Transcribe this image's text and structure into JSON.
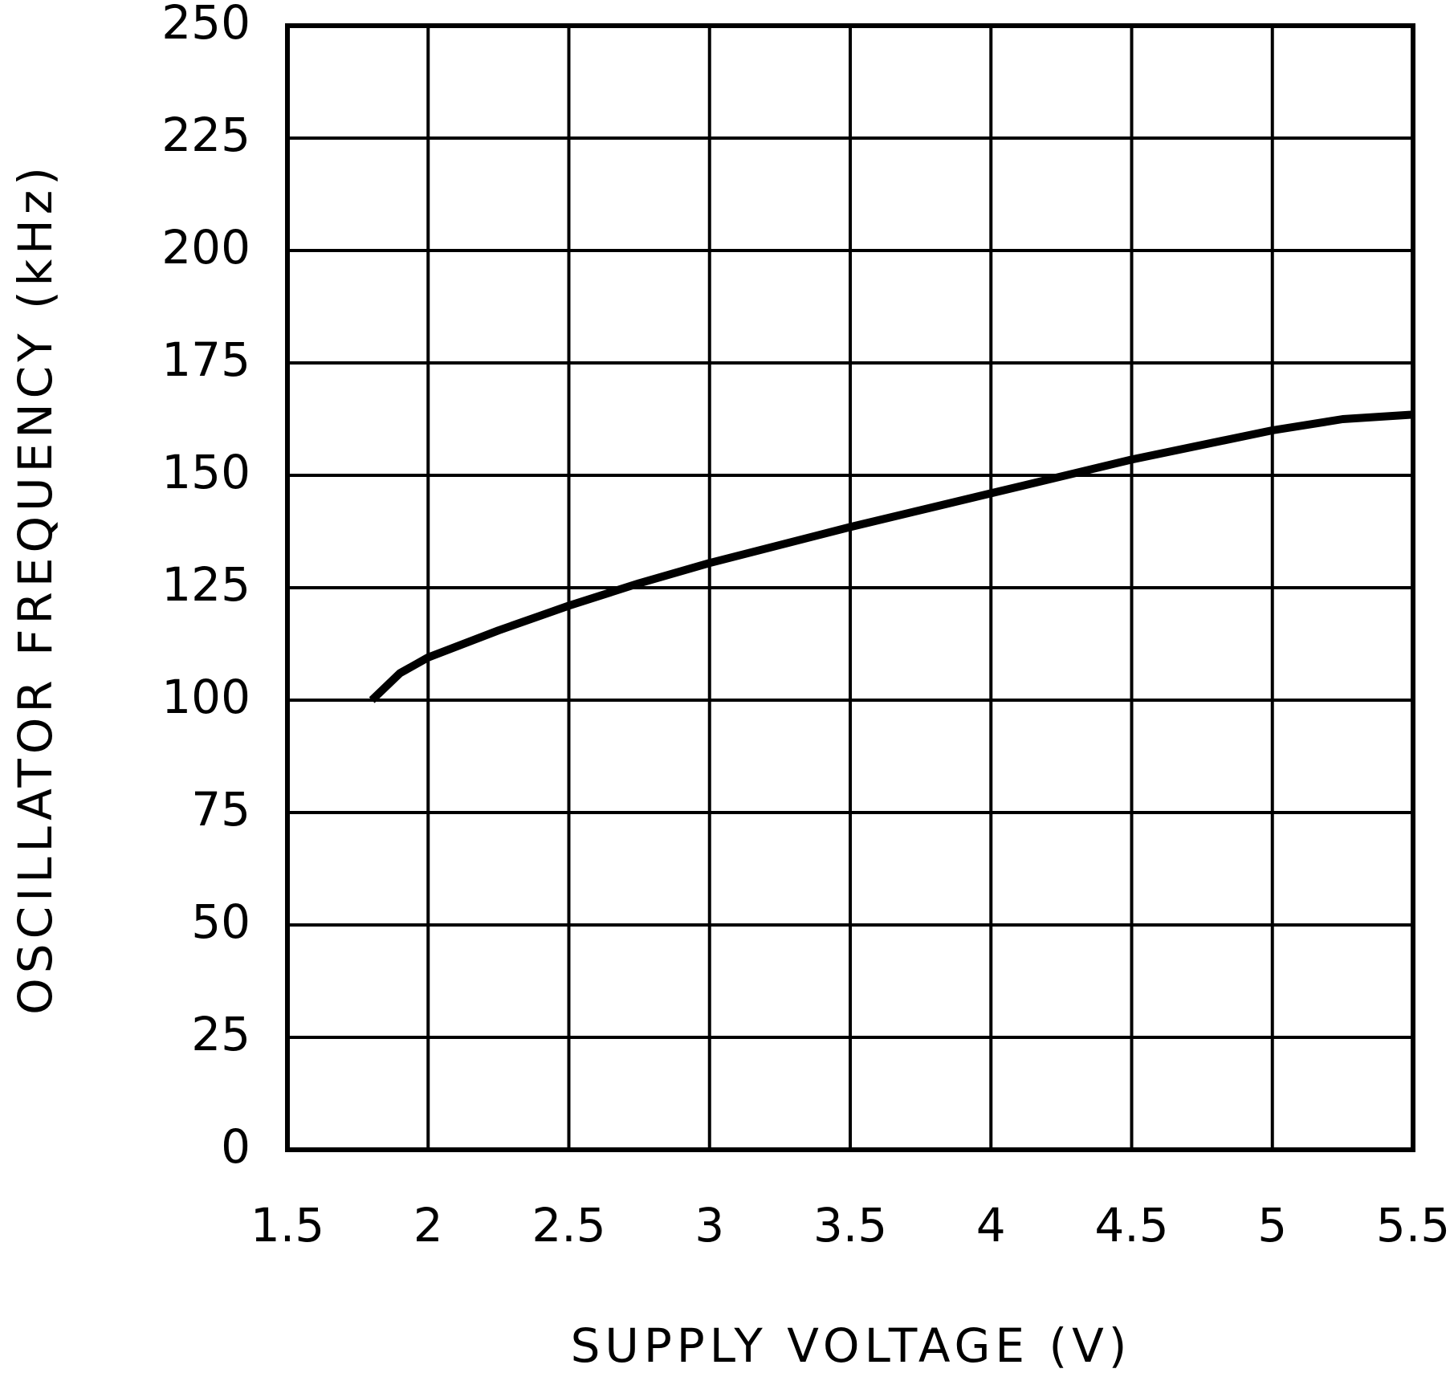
{
  "chart_data": {
    "type": "line",
    "x_label": "SUPPLY VOLTAGE (V)",
    "y_label": "OSCILLATOR FREQUENCY (kHz)",
    "x": [
      1.8,
      1.9,
      2.0,
      2.25,
      2.5,
      2.75,
      3.0,
      3.5,
      4.0,
      4.5,
      5.0,
      5.25,
      5.5
    ],
    "series": [
      {
        "color": "#000000",
        "values": [
          100,
          106,
          109.5,
          115.5,
          121,
          126,
          130.5,
          138.5,
          146,
          153.5,
          160,
          162.5,
          163.5
        ]
      }
    ],
    "xlim": [
      1.5,
      5.5
    ],
    "xticks": [
      1.5,
      2,
      2.5,
      3,
      3.5,
      4,
      4.5,
      5,
      5.5
    ],
    "ylim": [
      0,
      250
    ],
    "yticks": [
      0,
      25,
      50,
      75,
      100,
      125,
      150,
      175,
      200,
      225,
      250
    ],
    "grid": true
  }
}
